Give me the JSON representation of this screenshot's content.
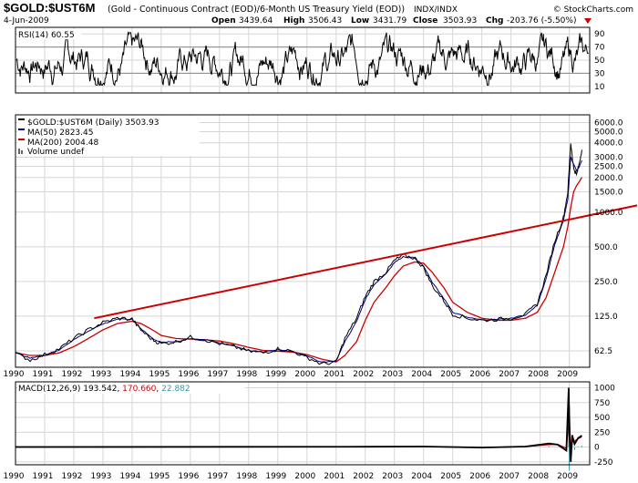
{
  "header": {
    "symbol": "$GOLD:$UST6M",
    "description": "(Gold - Continuous Contract (EOD)/6-Month US Treasury Yield (EOD))",
    "exchange": "INDX/INDX",
    "watermark": "© StockCharts.com",
    "date": "4-Jun-2009",
    "open_label": "Open",
    "open": "3439.64",
    "high_label": "High",
    "high": "3506.43",
    "low_label": "Low",
    "low": "3431.79",
    "close_label": "Close",
    "close": "3503.93",
    "chg_label": "Chg",
    "chg": "-203.76 (-5.50%)"
  },
  "colors": {
    "price": "#000080",
    "ma50": "#000080",
    "ma200": "#cc0000",
    "trend": "#cc0000",
    "signal": "#cc0000",
    "hist": "#3399aa",
    "down": "#cc0000"
  },
  "chart_data": [
    {
      "type": "line",
      "title": "RSI(14) 60.55",
      "legend": [
        "RSI(14) 60.55"
      ],
      "ylim": [
        0,
        100
      ],
      "y_ticks": [
        "90",
        "70",
        "50",
        "30",
        "10"
      ],
      "reference_lines": [
        70,
        30
      ],
      "x_ticks": [
        "1990",
        "1991",
        "1992",
        "1993",
        "1994",
        "1995",
        "1996",
        "1997",
        "1998",
        "1999",
        "2000",
        "2001",
        "2002",
        "2003",
        "2004",
        "2005",
        "2006",
        "2007",
        "2008",
        "2009"
      ],
      "series": [
        {
          "name": "RSI(14)",
          "oscillates_between": [
            12,
            92
          ],
          "last": 60.55
        }
      ]
    },
    {
      "type": "line",
      "title": "$GOLD:$UST6M (Daily) 3503.93",
      "y_scale": "log",
      "ylim": [
        45,
        7000
      ],
      "y_ticks": [
        "6000.0",
        "5000.0",
        "4000.0",
        "3000.0",
        "2500.0",
        "2000.0",
        "1500.0",
        "1000.0",
        "500.0",
        "250.0",
        "125.0",
        "62.5"
      ],
      "legend": [
        "$GOLD:$UST6M (Daily) 3503.93",
        "MA(50) 2823.45",
        "MA(200) 2004.48",
        "Volume undef"
      ],
      "x_ticks": [
        "1990",
        "1991",
        "1992",
        "1993",
        "1994",
        "1995",
        "1996",
        "1997",
        "1998",
        "1999",
        "2000",
        "2001",
        "2002",
        "2003",
        "2004",
        "2005",
        "2006",
        "2007",
        "2008",
        "2009"
      ],
      "x": [
        1990.0,
        1990.5,
        1991.0,
        1991.5,
        1992.0,
        1992.5,
        1993.0,
        1993.5,
        1994.0,
        1994.3,
        1994.7,
        1995.0,
        1995.5,
        1996.0,
        1996.5,
        1997.0,
        1997.5,
        1998.0,
        1998.5,
        1999.0,
        1999.5,
        2000.0,
        2000.5,
        2001.0,
        2001.3,
        2001.7,
        2002.0,
        2002.3,
        2002.7,
        2003.0,
        2003.3,
        2003.7,
        2004.0,
        2004.3,
        2004.7,
        2005.0,
        2005.5,
        2006.0,
        2006.5,
        2007.0,
        2007.5,
        2007.9,
        2008.2,
        2008.5,
        2008.8,
        2008.95,
        2009.05,
        2009.15,
        2009.25,
        2009.35,
        2009.43
      ],
      "series": [
        {
          "name": "$GOLD:$UST6M",
          "values": [
            60,
            52,
            58,
            65,
            80,
            95,
            110,
            120,
            118,
            95,
            78,
            72,
            75,
            82,
            78,
            72,
            68,
            62,
            60,
            65,
            62,
            55,
            48,
            50,
            80,
            120,
            185,
            250,
            300,
            380,
            420,
            400,
            330,
            230,
            170,
            130,
            120,
            115,
            117,
            120,
            130,
            160,
            280,
            560,
            900,
            1500,
            4000,
            2400,
            2100,
            2700,
            3504
          ]
        },
        {
          "name": "MA(50)",
          "values": [
            60,
            54,
            57,
            64,
            78,
            93,
            107,
            118,
            117,
            98,
            80,
            74,
            75,
            80,
            78,
            73,
            69,
            63,
            61,
            64,
            62,
            56,
            50,
            51,
            75,
            112,
            175,
            235,
            290,
            365,
            410,
            400,
            340,
            245,
            178,
            135,
            122,
            116,
            117,
            120,
            128,
            155,
            260,
            520,
            850,
            1300,
            3000,
            2600,
            2300,
            2500,
            2823
          ]
        },
        {
          "name": "MA(200)",
          "values": [
            60,
            57,
            57,
            60,
            68,
            80,
            95,
            108,
            113,
            108,
            95,
            85,
            80,
            79,
            78,
            76,
            72,
            67,
            63,
            62,
            61,
            58,
            53,
            50,
            57,
            75,
            115,
            165,
            220,
            280,
            340,
            370,
            360,
            300,
            220,
            165,
            135,
            120,
            115,
            115,
            120,
            135,
            180,
            300,
            500,
            750,
            1100,
            1500,
            1700,
            1850,
            2004
          ]
        },
        {
          "name": "Trend line",
          "points": [
            [
              1992.7,
              120
            ],
            [
              2009.8,
              1080
            ]
          ]
        }
      ]
    },
    {
      "type": "line",
      "title": "MACD(12,26,9) 193.542, 170.660, 22.882",
      "legend": [
        "MACD(12,26,9) 193.542",
        "170.660",
        "22.882"
      ],
      "ylim": [
        -300,
        1100
      ],
      "y_ticks": [
        "1000",
        "750",
        "500",
        "250",
        "0",
        "-250"
      ],
      "x_ticks": [
        "1990",
        "1991",
        "1992",
        "1993",
        "1994",
        "1995",
        "1996",
        "1997",
        "1998",
        "1999",
        "2000",
        "2001",
        "2002",
        "2003",
        "2004",
        "2005",
        "2006",
        "2007",
        "2008",
        "2009"
      ],
      "x": [
        1990,
        2002,
        2004,
        2006,
        2007.5,
        2008.3,
        2008.6,
        2008.9,
        2008.98,
        2009.0,
        2009.05,
        2009.1,
        2009.18,
        2009.3,
        2009.43
      ],
      "series": [
        {
          "name": "MACD",
          "values": [
            0,
            5,
            8,
            -10,
            8,
            60,
            40,
            -60,
            1000,
            300,
            -250,
            200,
            50,
            150,
            193.542
          ]
        },
        {
          "name": "Signal",
          "values": [
            0,
            4,
            7,
            -8,
            6,
            40,
            45,
            -20,
            400,
            700,
            -100,
            80,
            100,
            140,
            170.66
          ]
        },
        {
          "name": "Histogram",
          "values": [
            0,
            1,
            1,
            -2,
            2,
            20,
            -5,
            -40,
            600,
            -400,
            -150,
            120,
            -50,
            10,
            22.882
          ]
        }
      ]
    }
  ]
}
